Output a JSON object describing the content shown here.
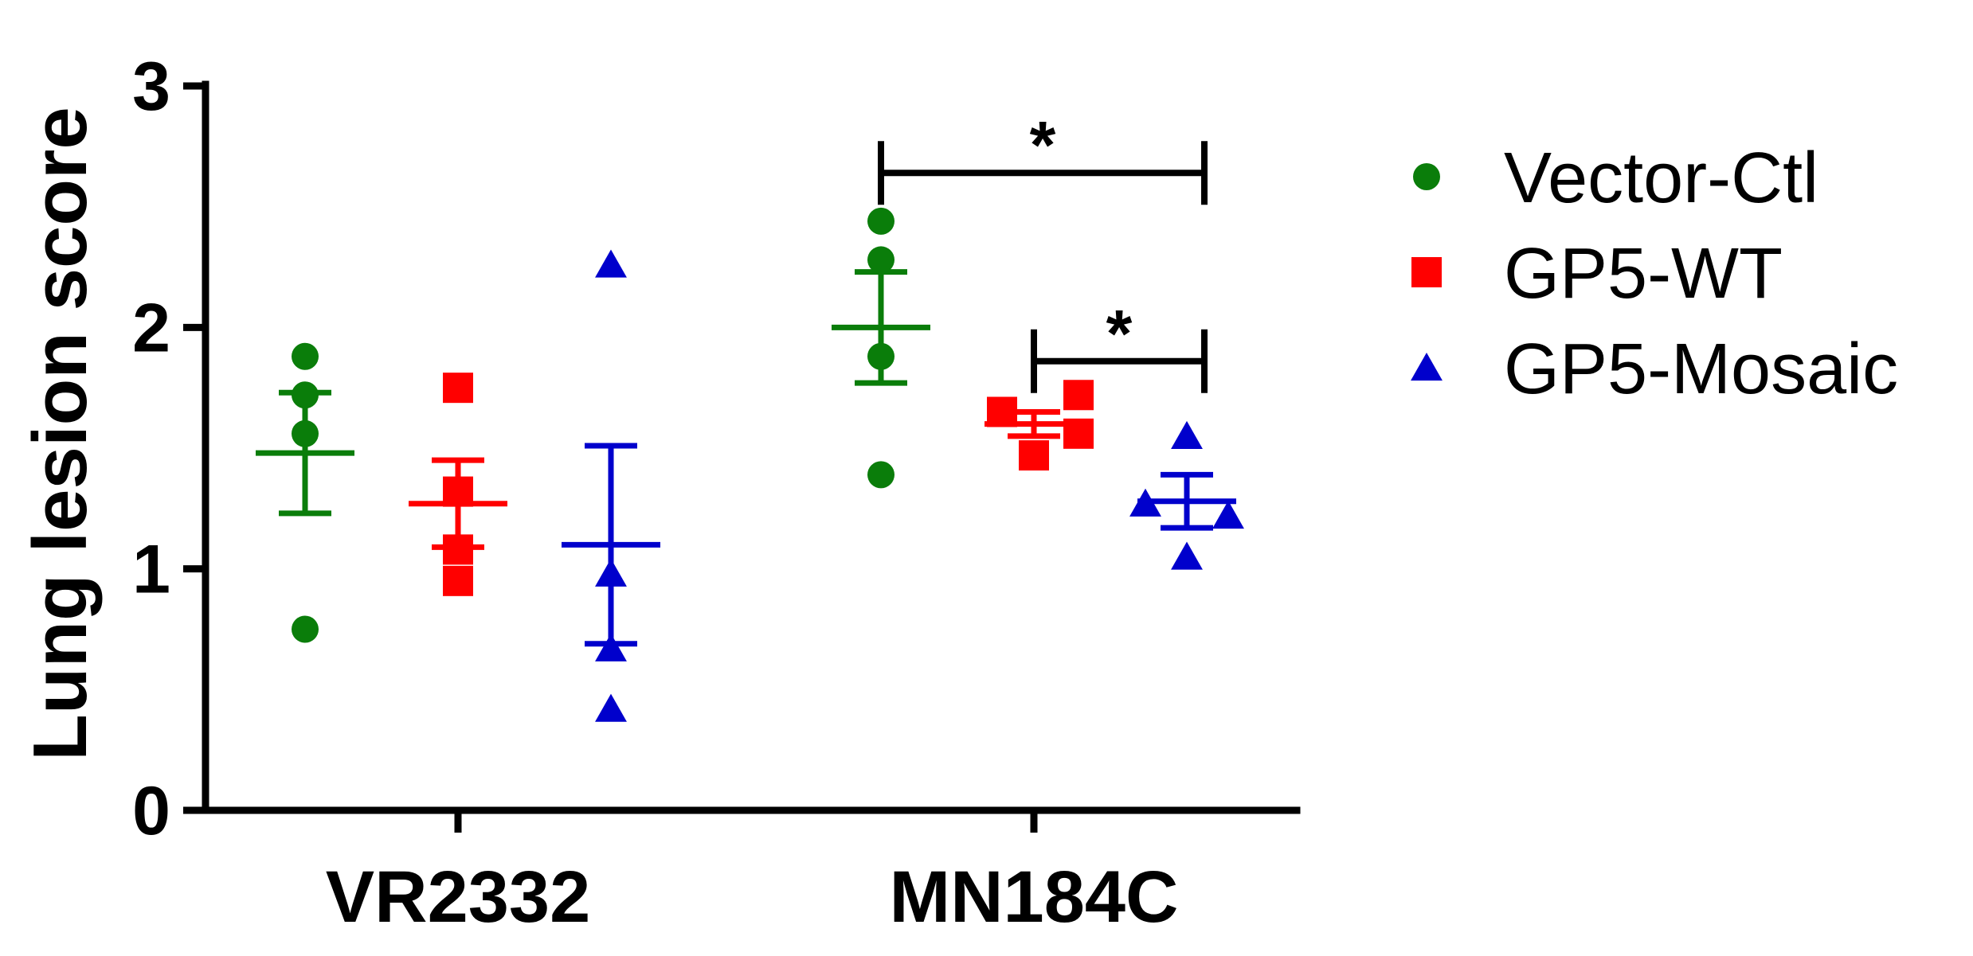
{
  "chart_data": {
    "type": "scatter",
    "ylabel": "Lung lesion score",
    "ylim": [
      0,
      3
    ],
    "yticks": [
      0,
      1,
      2,
      3
    ],
    "categories": [
      "VR2332",
      "MN184C"
    ],
    "legend_position": "right",
    "series": [
      {
        "name": "Vector-Ctl",
        "color": "#0a7d0a",
        "marker": "circle",
        "points": {
          "VR2332": [
            1.88,
            1.72,
            1.56,
            0.75
          ],
          "MN184C": [
            2.44,
            2.28,
            1.88,
            1.39
          ]
        },
        "mean": {
          "VR2332": 1.48,
          "MN184C": 2.0
        },
        "sem": {
          "VR2332": 0.25,
          "MN184C": 0.23
        }
      },
      {
        "name": "GP5-WT",
        "color": "#ff0000",
        "marker": "square",
        "points": {
          "VR2332": [
            1.75,
            1.32,
            1.08,
            0.95
          ],
          "MN184C": [
            1.72,
            1.65,
            1.56,
            1.47
          ]
        },
        "mean": {
          "VR2332": 1.27,
          "MN184C": 1.6
        },
        "sem": {
          "VR2332": 0.18,
          "MN184C": 0.05
        }
      },
      {
        "name": "GP5-Mosaic",
        "color": "#0000cc",
        "marker": "triangle",
        "points": {
          "VR2332": [
            2.26,
            0.98,
            0.67,
            0.42
          ],
          "MN184C": [
            1.55,
            1.27,
            1.22,
            1.05
          ]
        },
        "mean": {
          "VR2332": 1.1,
          "MN184C": 1.28
        },
        "sem": {
          "VR2332": 0.41,
          "MN184C": 0.11
        }
      }
    ],
    "annotations": [
      {
        "category": "MN184C",
        "from": "Vector-Ctl",
        "to": "GP5-Mosaic",
        "y": 2.64,
        "text": "*"
      },
      {
        "category": "MN184C",
        "from": "GP5-WT",
        "to": "GP5-Mosaic",
        "y": 1.86,
        "text": "*"
      }
    ]
  }
}
